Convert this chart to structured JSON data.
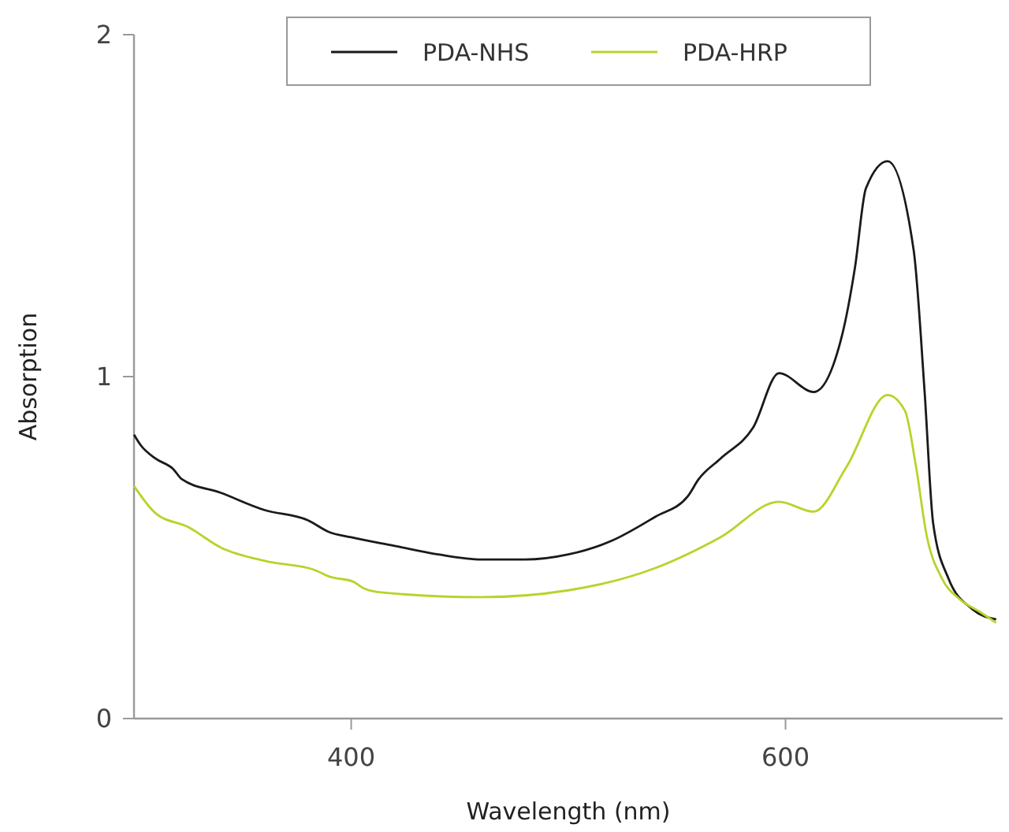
{
  "chart_data": {
    "type": "line",
    "xlabel": "Wavelength (nm)",
    "ylabel": "Absorption",
    "xlim": [
      300,
      700
    ],
    "ylim": [
      0,
      2
    ],
    "xticks": [
      400,
      600
    ],
    "yticks": [
      0,
      1,
      2
    ],
    "grid": false,
    "legend": "top",
    "line_style": "solid",
    "series": [
      {
        "name": "PDA-NHS",
        "color": "#1a1a1a",
        "x": [
          300,
          303,
          310,
          318,
          322,
          340,
          360,
          380,
          390,
          400,
          420,
          440,
          460,
          480,
          500,
          520,
          540,
          555,
          560,
          570,
          585,
          597,
          613,
          626,
          632,
          637,
          647,
          659,
          664,
          668,
          675,
          686,
          697
        ],
        "values": [
          0.83,
          0.8,
          0.76,
          0.73,
          0.7,
          0.66,
          0.61,
          0.58,
          0.545,
          0.53,
          0.505,
          0.48,
          0.465,
          0.465,
          0.48,
          0.52,
          0.59,
          0.65,
          0.7,
          0.76,
          0.85,
          1.01,
          0.955,
          1.12,
          1.32,
          1.55,
          1.63,
          1.37,
          0.96,
          0.57,
          0.41,
          0.32,
          0.29
        ]
      },
      {
        "name": "PDA-HRP",
        "color": "#b5d52a",
        "x": [
          300,
          310,
          325,
          340,
          361,
          383,
          390,
          401,
          406,
          412,
          460,
          500,
          540,
          570,
          597,
          613,
          628,
          647,
          655,
          660,
          665,
          672,
          680,
          690,
          697
        ],
        "values": [
          0.68,
          0.6,
          0.56,
          0.5,
          0.46,
          0.435,
          0.415,
          0.4,
          0.38,
          0.37,
          0.355,
          0.375,
          0.44,
          0.53,
          0.634,
          0.605,
          0.735,
          0.946,
          0.9,
          0.74,
          0.535,
          0.41,
          0.35,
          0.31,
          0.28
        ]
      }
    ]
  }
}
